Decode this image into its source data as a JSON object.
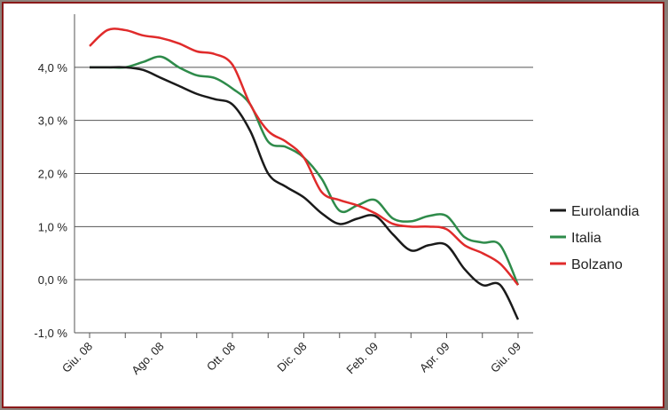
{
  "chart_data": {
    "type": "line",
    "title": "",
    "xlabel": "",
    "ylabel": "",
    "x_ticks": [
      "Giu. 08",
      "",
      "Ago. 08",
      "",
      "Ott. 08",
      "",
      "Dic. 08",
      "",
      "Feb. 09",
      "",
      "Apr. 09",
      "",
      "Giu. 09"
    ],
    "y_ticks": [
      "-1,0 %",
      "0,0 %",
      "1,0 %",
      "2,0 %",
      "3,0 %",
      "4,0 %"
    ],
    "ylim": [
      -1.0,
      5.0
    ],
    "xlim": [
      0,
      12
    ],
    "grid": "horizontal",
    "legend_position": "right",
    "series": [
      {
        "name": "Eurolandia",
        "color": "#1a1a1a",
        "x": [
          0,
          0.5,
          1,
          1.5,
          2,
          2.5,
          3,
          3.5,
          4,
          4.5,
          5,
          5.5,
          6,
          6.5,
          7,
          7.5,
          8,
          8.5,
          9,
          9.5,
          10,
          10.5,
          11,
          11.5,
          12
        ],
        "y": [
          4.0,
          4.0,
          4.0,
          3.95,
          3.8,
          3.65,
          3.5,
          3.4,
          3.3,
          2.8,
          2.0,
          1.75,
          1.55,
          1.25,
          1.05,
          1.15,
          1.2,
          0.85,
          0.55,
          0.65,
          0.65,
          0.2,
          -0.1,
          -0.1,
          -0.75
        ]
      },
      {
        "name": "Italia",
        "color": "#2e8b4a",
        "x": [
          0,
          0.5,
          1,
          1.5,
          2,
          2.5,
          3,
          3.5,
          4,
          4.5,
          5,
          5.5,
          6,
          6.5,
          7,
          7.5,
          8,
          8.5,
          9,
          9.5,
          10,
          10.5,
          11,
          11.5,
          12
        ],
        "y": [
          4.0,
          4.0,
          4.0,
          4.1,
          4.2,
          4.0,
          3.85,
          3.8,
          3.6,
          3.3,
          2.6,
          2.5,
          2.3,
          1.9,
          1.3,
          1.4,
          1.5,
          1.15,
          1.1,
          1.2,
          1.2,
          0.8,
          0.7,
          0.65,
          -0.1
        ]
      },
      {
        "name": "Bolzano",
        "color": "#e02b2b",
        "x": [
          0,
          0.5,
          1,
          1.5,
          2,
          2.5,
          3,
          3.5,
          4,
          4.5,
          5,
          5.5,
          6,
          6.5,
          7,
          7.5,
          8,
          8.5,
          9,
          9.5,
          10,
          10.5,
          11,
          11.5,
          12
        ],
        "y": [
          4.4,
          4.7,
          4.7,
          4.6,
          4.55,
          4.45,
          4.3,
          4.25,
          4.05,
          3.3,
          2.8,
          2.6,
          2.3,
          1.65,
          1.5,
          1.4,
          1.25,
          1.05,
          1.0,
          1.0,
          0.95,
          0.65,
          0.5,
          0.3,
          -0.1
        ]
      }
    ]
  }
}
